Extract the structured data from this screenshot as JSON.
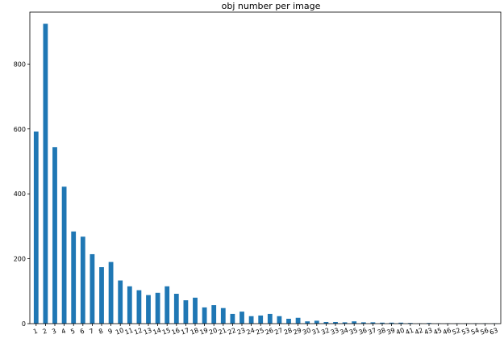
{
  "chart_data": {
    "type": "bar",
    "title": "obj number per image",
    "xlabel": "",
    "ylabel": "",
    "ylim": [
      0,
      960
    ],
    "yticks": [
      0,
      200,
      400,
      600,
      800
    ],
    "bar_color": "#1f77b4",
    "categories": [
      "1",
      "2",
      "3",
      "4",
      "5",
      "6",
      "7",
      "8",
      "9",
      "10",
      "11",
      "12",
      "13",
      "14",
      "15",
      "16",
      "17",
      "18",
      "19",
      "20",
      "21",
      "22",
      "23",
      "24",
      "25",
      "26",
      "27",
      "28",
      "29",
      "30",
      "31",
      "32",
      "33",
      "34",
      "35",
      "36",
      "37",
      "38",
      "39",
      "40",
      "41",
      "42",
      "43",
      "45",
      "46",
      "52",
      "53",
      "54",
      "56",
      "63"
    ],
    "values": [
      592,
      924,
      544,
      422,
      284,
      268,
      214,
      174,
      190,
      133,
      115,
      103,
      88,
      95,
      115,
      92,
      72,
      80,
      50,
      57,
      48,
      30,
      37,
      23,
      25,
      30,
      23,
      15,
      18,
      7,
      9,
      5,
      5,
      4,
      7,
      4,
      4,
      3,
      3,
      3,
      2,
      1,
      2,
      1,
      1,
      1,
      1,
      1,
      1,
      1
    ]
  }
}
